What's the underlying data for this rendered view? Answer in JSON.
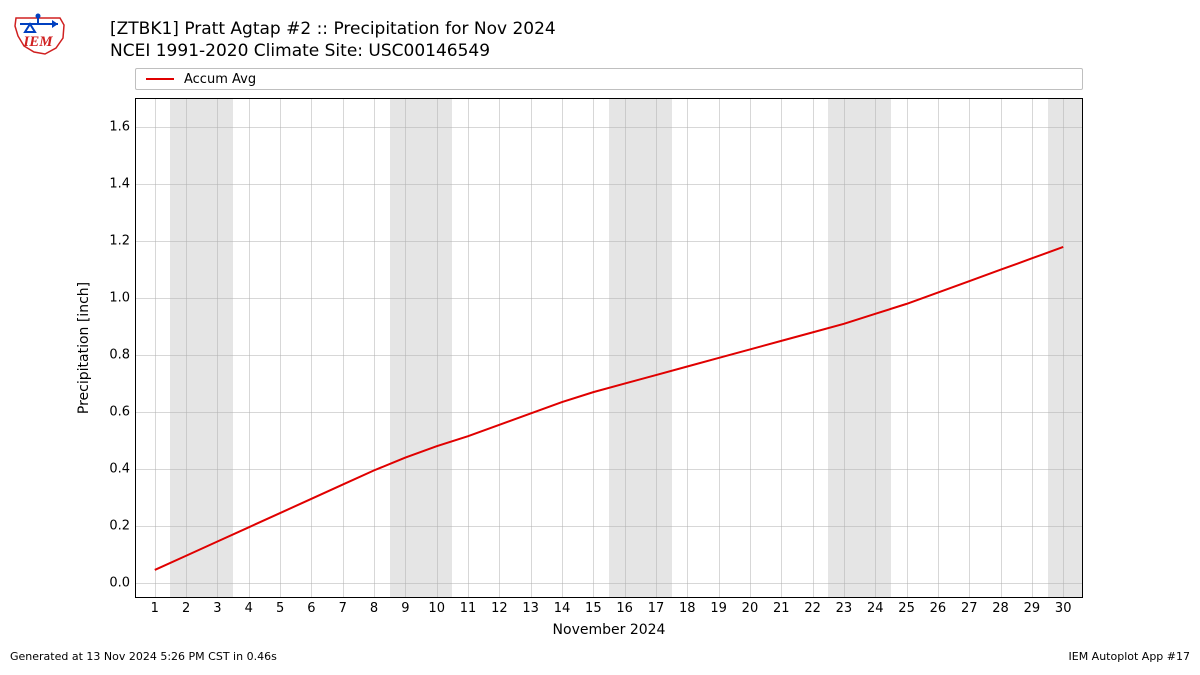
{
  "logo": {
    "text": "IEM",
    "outline_color": "#d02020",
    "accent_color": "#0040c0"
  },
  "title": {
    "line1": "[ZTBK1] Pratt Agtap #2 :: Precipitation for Nov 2024",
    "line2": "NCEI 1991-2020 Climate Site: USC00146549"
  },
  "legend": {
    "items": [
      {
        "label": "Accum Avg",
        "color": "#e00000"
      }
    ]
  },
  "chart": {
    "type": "line",
    "xlabel": "November 2024",
    "ylabel": "Precipitation [inch]",
    "background_color": "#ffffff",
    "grid_color": "#b0b0b0",
    "weekend_band_color": "#e5e5e5",
    "border_color": "#000000",
    "xlim": [
      0.4,
      30.6
    ],
    "ylim": [
      -0.05,
      1.7
    ],
    "xticks": [
      1,
      2,
      3,
      4,
      5,
      6,
      7,
      8,
      9,
      10,
      11,
      12,
      13,
      14,
      15,
      16,
      17,
      18,
      19,
      20,
      21,
      22,
      23,
      24,
      25,
      26,
      27,
      28,
      29,
      30
    ],
    "yticks": [
      0.0,
      0.2,
      0.4,
      0.6,
      0.8,
      1.0,
      1.2,
      1.4,
      1.6
    ],
    "ytick_labels": [
      "0.0",
      "0.2",
      "0.4",
      "0.6",
      "0.8",
      "1.0",
      "1.2",
      "1.4",
      "1.6"
    ],
    "weekend_bands": [
      [
        1.5,
        3.5
      ],
      [
        8.5,
        10.5
      ],
      [
        15.5,
        17.5
      ],
      [
        22.5,
        24.5
      ],
      [
        29.5,
        30.6
      ]
    ],
    "series": [
      {
        "name": "Accum Avg",
        "color": "#e00000",
        "line_width": 2,
        "x": [
          1,
          2,
          3,
          4,
          5,
          6,
          7,
          8,
          9,
          10,
          11,
          12,
          13,
          14,
          15,
          16,
          17,
          18,
          19,
          20,
          21,
          22,
          23,
          24,
          25,
          26,
          27,
          28,
          29,
          30
        ],
        "y": [
          0.045,
          0.095,
          0.145,
          0.195,
          0.245,
          0.295,
          0.345,
          0.395,
          0.44,
          0.48,
          0.515,
          0.555,
          0.595,
          0.635,
          0.67,
          0.7,
          0.73,
          0.76,
          0.79,
          0.82,
          0.85,
          0.88,
          0.91,
          0.945,
          0.98,
          1.02,
          1.06,
          1.1,
          1.14,
          1.18
        ]
      }
    ]
  },
  "footer": {
    "left": "Generated at 13 Nov 2024 5:26 PM CST in 0.46s",
    "right": "IEM Autoplot App #17"
  }
}
